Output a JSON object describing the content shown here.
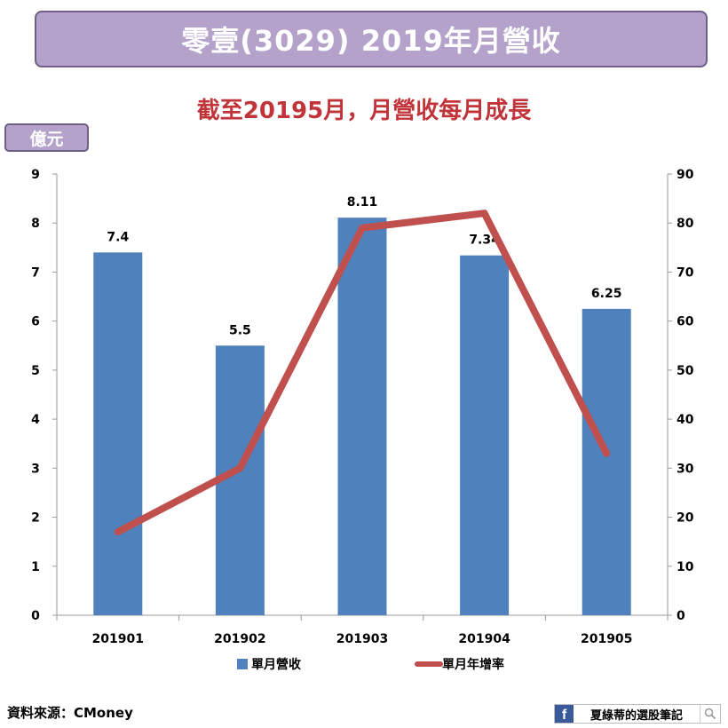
{
  "header": {
    "title": "零壹(3029) 2019年月營收",
    "unit_badge": "億元"
  },
  "chart_data": {
    "type": "bar",
    "title": "截至20195月，月營收每月成長",
    "categories": [
      "201901",
      "201902",
      "201903",
      "201904",
      "201905"
    ],
    "series": [
      {
        "name": "單月營收",
        "kind": "bar",
        "axis": "left",
        "color": "#4f81bd",
        "values": [
          7.4,
          5.5,
          8.11,
          7.34,
          6.25
        ],
        "labels": [
          "7.4",
          "5.5",
          "8.11",
          "7.34",
          "6.25"
        ]
      },
      {
        "name": "單月年增率",
        "kind": "line",
        "axis": "right",
        "color": "#c0504d",
        "values": [
          17,
          30,
          79,
          82,
          33
        ]
      }
    ],
    "y_left": {
      "ylim": [
        0,
        9
      ],
      "ticks": [
        "0",
        "1",
        "2",
        "3",
        "4",
        "5",
        "6",
        "7",
        "8",
        "9"
      ]
    },
    "y_right": {
      "ylim": [
        0,
        90
      ],
      "ticks": [
        "0",
        "10",
        "20",
        "30",
        "40",
        "50",
        "60",
        "70",
        "80",
        "90"
      ]
    },
    "legend": "bottom",
    "grid": false
  },
  "footer": {
    "source": "資料來源：CMoney",
    "brand_name": "夏綠蒂的選股筆記",
    "fb_icon": "facebook-icon",
    "search_icon": "search-icon"
  }
}
